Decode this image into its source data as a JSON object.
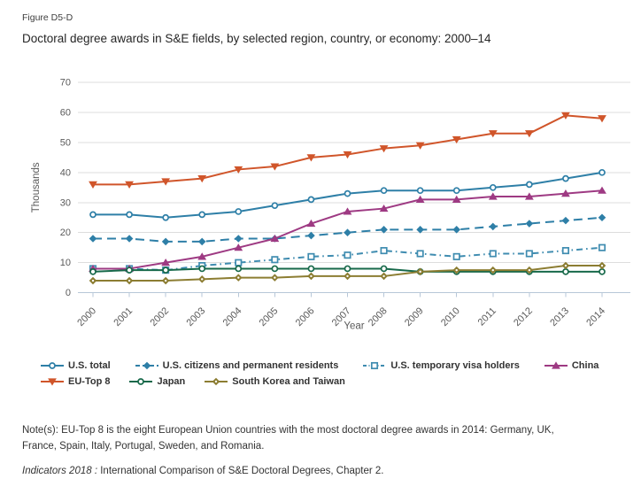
{
  "figure_label": "Figure D5-D",
  "title": "Doctoral degree awards in S&E fields, by selected region, country, or economy: 2000–14",
  "chart_data": {
    "type": "line",
    "x": [
      2000,
      2001,
      2002,
      2003,
      2004,
      2005,
      2006,
      2007,
      2008,
      2009,
      2010,
      2011,
      2012,
      2013,
      2014
    ],
    "xlabel": "Year",
    "ylabel": "Thousands",
    "ylim": [
      0,
      70
    ],
    "ytick_step": 10,
    "grid": true,
    "legend_position": "bottom",
    "series": [
      {
        "name": "U.S. total",
        "color": "#2e7fa7",
        "line": "solid",
        "marker": "circle-open",
        "values": [
          26,
          26,
          25,
          26,
          27,
          29,
          31,
          33,
          34,
          34,
          34,
          35,
          36,
          38,
          40
        ]
      },
      {
        "name": "U.S. citizens and permanent residents",
        "color": "#2e7fa7",
        "line": "dashed",
        "marker": "diamond",
        "values": [
          18,
          18,
          17,
          17,
          18,
          18,
          19,
          20,
          21,
          21,
          21,
          22,
          23,
          24,
          25
        ]
      },
      {
        "name": "U.S. temporary visa holders",
        "color": "#3f8cb0",
        "line": "dashdot",
        "marker": "square-open",
        "values": [
          8,
          8,
          7.5,
          9,
          10,
          11,
          12,
          12.5,
          14,
          13,
          12,
          13,
          13,
          14,
          15
        ]
      },
      {
        "name": "China",
        "color": "#9e3a83",
        "line": "solid",
        "marker": "triangle-up",
        "values": [
          8,
          8,
          10,
          12,
          15,
          18,
          23,
          27,
          28,
          31,
          31,
          32,
          32,
          33,
          34
        ]
      },
      {
        "name": "EU-Top 8",
        "color": "#d0552a",
        "line": "solid",
        "marker": "triangle-down",
        "values": [
          36,
          36,
          37,
          38,
          41,
          42,
          45,
          46,
          48,
          49,
          51,
          53,
          53,
          59,
          58
        ]
      },
      {
        "name": "Japan",
        "color": "#17694a",
        "line": "solid",
        "marker": "circle-open",
        "values": [
          7,
          7.5,
          7.5,
          8,
          8,
          8,
          8,
          8,
          8,
          7,
          7,
          7,
          7,
          7,
          7
        ]
      },
      {
        "name": "South Korea and Taiwan",
        "color": "#8c7d32",
        "line": "solid",
        "marker": "diamond-dot",
        "values": [
          4,
          4,
          4,
          4.5,
          5,
          5,
          5.5,
          5.5,
          5.5,
          7,
          7.5,
          7.5,
          7.5,
          9,
          9
        ]
      }
    ],
    "legend_rows": [
      [
        0,
        1,
        2,
        3
      ],
      [
        4,
        5,
        6
      ]
    ]
  },
  "notes_lines": [
    "Note(s): EU-Top 8 is the eight European Union countries with the most doctoral degree awards in 2014: Germany, UK,",
    "France, Spain, Italy, Portugal, Sweden, and Romania."
  ],
  "source": {
    "italic": "Indicators 2018 :",
    "rest": " International Comparison of S&E Doctoral Degrees, Chapter 2."
  },
  "colors": {
    "axis": "#b7c7d8",
    "grid": "#dddddd",
    "tick_text": "#5a5a5a",
    "legend_text": "#333333"
  }
}
